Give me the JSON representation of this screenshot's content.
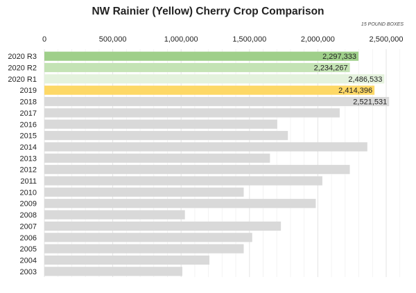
{
  "chart_data": {
    "type": "bar",
    "orientation": "horizontal",
    "title": "NW Rainier (Yellow) Cherry Crop Comparison",
    "units_note": "15 POUND BOXES",
    "xlabel": "",
    "ylabel": "",
    "xlim": [
      0,
      2500000
    ],
    "x_ticks": [
      0,
      500000,
      1000000,
      1500000,
      2000000,
      2500000
    ],
    "x_tick_labels": [
      "0",
      "500,000",
      "1,000,000",
      "1,500,000",
      "2,000,000",
      "2,500,000"
    ],
    "grid": true,
    "categories": [
      "2020 R3",
      "2020 R2",
      "2020 R1",
      "2019",
      "2018",
      "2017",
      "2016",
      "2015",
      "2014",
      "2013",
      "2012",
      "2011",
      "2010",
      "2009",
      "2008",
      "2007",
      "2006",
      "2005",
      "2004",
      "2003"
    ],
    "values": [
      2297333,
      2234267,
      2486533,
      2414396,
      2521531,
      2160000,
      1703000,
      1781000,
      2362000,
      1650000,
      2234000,
      2033000,
      1458000,
      1985000,
      1028000,
      1730000,
      1520000,
      1458000,
      1207000,
      1009000
    ],
    "data_labels": [
      "2,297,333",
      "2,234,267",
      "2,486,533",
      "2,414,396",
      "2,521,531",
      null,
      null,
      null,
      null,
      null,
      null,
      null,
      null,
      null,
      null,
      null,
      null,
      null,
      null,
      null
    ],
    "colors": [
      "#9fcf8a",
      "#c4e3b5",
      "#e4f2dd",
      "#fdd866",
      "#d9d9d9",
      "#d9d9d9",
      "#d9d9d9",
      "#d9d9d9",
      "#d9d9d9",
      "#d9d9d9",
      "#d9d9d9",
      "#d9d9d9",
      "#d9d9d9",
      "#d9d9d9",
      "#d9d9d9",
      "#d9d9d9",
      "#d9d9d9",
      "#d9d9d9",
      "#d9d9d9",
      "#d9d9d9"
    ]
  }
}
